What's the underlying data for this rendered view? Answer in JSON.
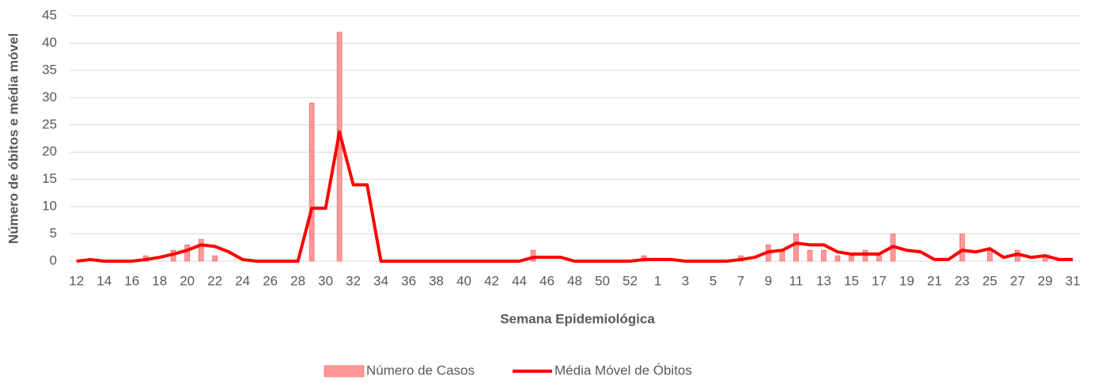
{
  "chart_data": {
    "type": "bar",
    "x_label": "Semana Epidemiológica",
    "y_label": "Número de óbitos e média móvel",
    "categories": [
      "12",
      null,
      "14",
      null,
      "16",
      null,
      "18",
      null,
      "20",
      null,
      "22",
      null,
      "24",
      null,
      "26",
      null,
      "28",
      null,
      "30",
      null,
      "32",
      null,
      "34",
      null,
      "36",
      null,
      "38",
      null,
      "40",
      null,
      "42",
      null,
      "44",
      null,
      "46",
      null,
      "48",
      null,
      "50",
      null,
      "52",
      null,
      "1",
      null,
      "3",
      null,
      "5",
      null,
      "7",
      null,
      "9",
      null,
      "11",
      null,
      "13",
      null,
      "15",
      null,
      "17",
      null,
      "19",
      null,
      "21",
      null,
      "23",
      null,
      "25",
      null,
      "27",
      null,
      "29",
      null,
      "31"
    ],
    "series": [
      {
        "name": "Número de Casos",
        "type": "bar",
        "color": "#ff9999",
        "values": [
          0,
          0,
          0,
          0,
          0,
          1,
          0,
          2,
          3,
          4,
          1,
          0,
          0,
          0,
          0,
          0,
          0,
          29,
          0,
          42,
          0,
          0,
          0,
          0,
          0,
          0,
          0,
          0,
          0,
          0,
          0,
          0,
          0,
          2,
          0,
          0,
          0,
          0,
          0,
          0,
          0,
          1,
          0,
          0,
          0,
          0,
          0,
          0,
          1,
          0,
          3,
          2,
          5,
          2,
          2,
          1,
          1,
          2,
          1,
          5,
          0,
          0,
          0,
          0,
          5,
          0,
          2,
          0,
          2,
          0,
          1,
          0,
          0
        ]
      },
      {
        "name": "Média Móvel de Óbitos",
        "type": "line",
        "color": "#ff0000",
        "values": [
          0,
          0.3,
          0,
          0,
          0,
          0.3,
          0.7,
          1.3,
          2,
          3,
          2.7,
          1.7,
          0.3,
          0,
          0,
          0,
          0,
          9.7,
          9.7,
          23.7,
          14,
          14,
          0,
          0,
          0,
          0,
          0,
          0,
          0,
          0,
          0,
          0,
          0,
          0.7,
          0.7,
          0.7,
          0,
          0,
          0,
          0,
          0,
          0.3,
          0.3,
          0.3,
          0,
          0,
          0,
          0,
          0.3,
          0.7,
          1.7,
          2,
          3.3,
          3,
          3,
          1.7,
          1.3,
          1.3,
          1.3,
          2.7,
          2,
          1.7,
          0.3,
          0.3,
          2,
          1.7,
          2.3,
          0.7,
          1.3,
          0.7,
          1,
          0.3,
          0.3
        ]
      }
    ],
    "ylim": [
      0,
      45
    ],
    "yticks": [
      0,
      5,
      10,
      15,
      20,
      25,
      30,
      35,
      40,
      45
    ],
    "grid": true,
    "legend": "bottom"
  }
}
